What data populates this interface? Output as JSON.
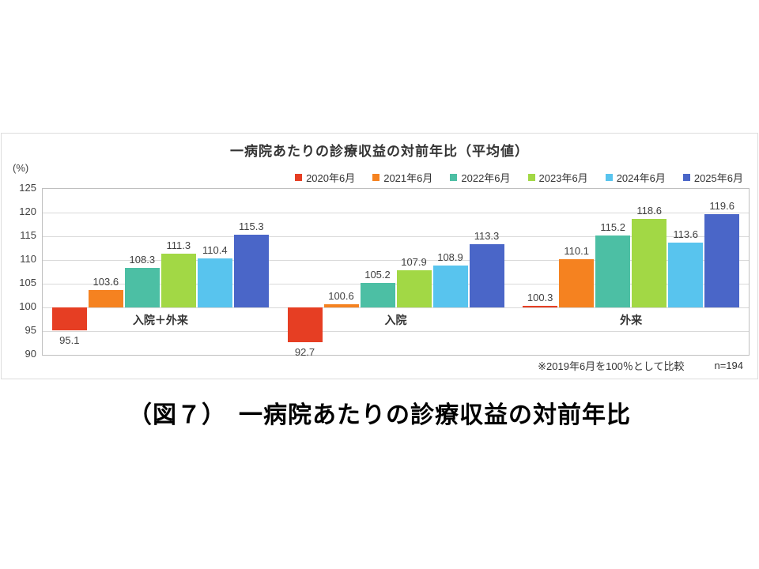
{
  "chart": {
    "title": "一病院あたりの診療収益の対前年比（平均値）",
    "y_unit_label": "(%)",
    "footnote": "※2019年6月を100％として比較",
    "sample_size": "n=194"
  },
  "caption": "（図７）　一病院あたりの診療収益の対前年比",
  "chart_data": {
    "type": "bar",
    "title": "一病院あたりの診療収益の対前年比（平均値）",
    "ylabel": "(%)",
    "ylim": [
      90,
      125
    ],
    "ytick_step": 5,
    "baseline": 100,
    "grid": true,
    "legend_position": "top-right",
    "categories": [
      "入院＋外来",
      "入院",
      "外来"
    ],
    "series": [
      {
        "name": "2020年6月",
        "color": "#e63e23",
        "values": [
          95.1,
          92.7,
          100.3
        ]
      },
      {
        "name": "2021年6月",
        "color": "#f58220",
        "values": [
          103.6,
          100.6,
          110.1
        ]
      },
      {
        "name": "2022年6月",
        "color": "#4cbfa4",
        "values": [
          108.3,
          105.2,
          115.2
        ]
      },
      {
        "name": "2023年6月",
        "color": "#a2d845",
        "values": [
          111.3,
          107.9,
          118.6
        ]
      },
      {
        "name": "2024年6月",
        "color": "#58c4ee",
        "values": [
          110.4,
          108.9,
          113.6
        ]
      },
      {
        "name": "2025年6月",
        "color": "#4a66c8",
        "values": [
          115.3,
          113.3,
          119.6
        ]
      }
    ],
    "annotations": [
      "※2019年6月を100％として比較",
      "n=194"
    ]
  }
}
